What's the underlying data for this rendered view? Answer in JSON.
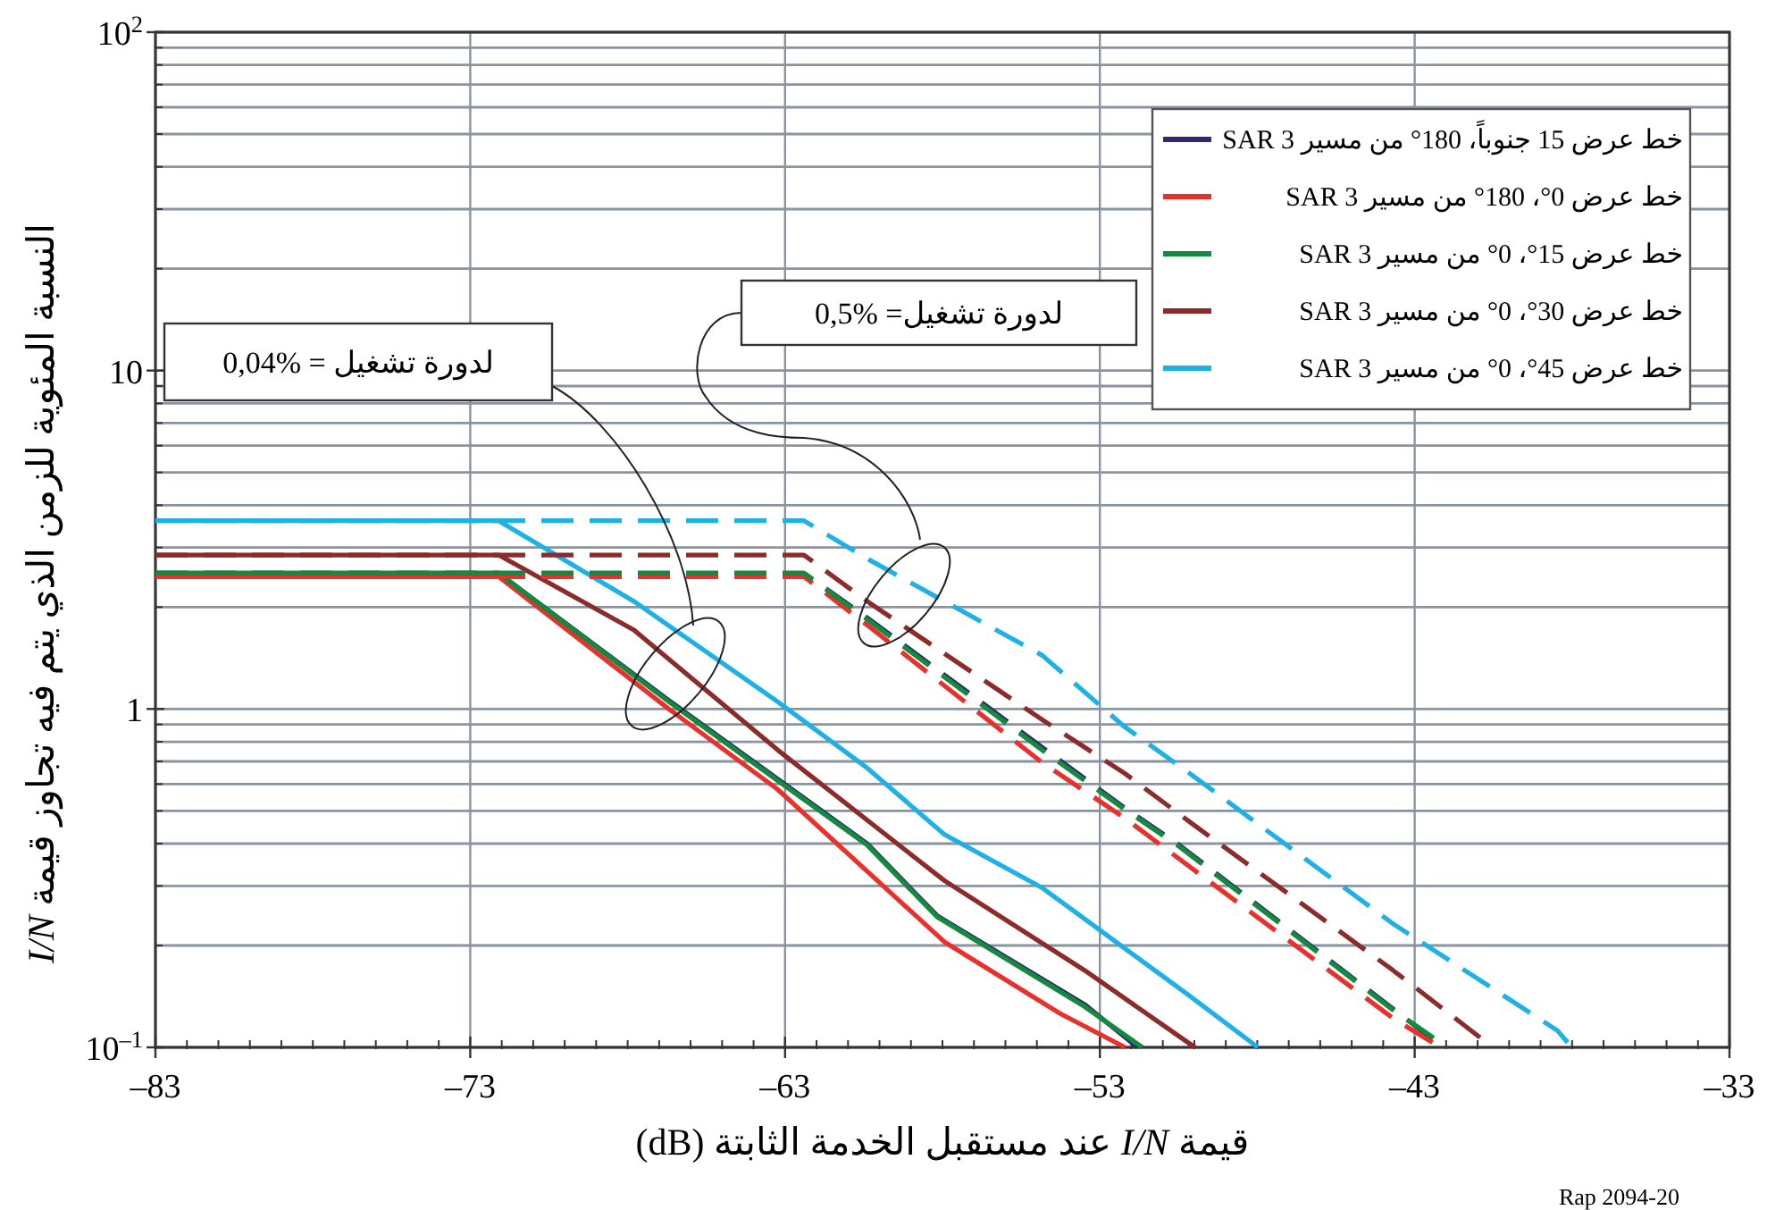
{
  "chart_data": {
    "type": "line",
    "xlabel": "قيمة *I/N* عند مستقبل الخدمة الثابتة (dB)",
    "ylabel": "النسبة المئوية للزمن الذي يتم فيه تجاوز قيمة *I/N*",
    "annotations": [
      "لدورة تشغيل = %0,04",
      "لدورة تشغيل= %0,5",
      "Rap 2094-20"
    ],
    "xlim": [
      -83,
      -33
    ],
    "ylim": [
      0.1,
      100
    ],
    "log": "y",
    "grid": true,
    "legend": "top right",
    "xticks": [
      {
        "value": -83,
        "label": "–83"
      },
      {
        "value": -73,
        "label": "–73"
      },
      {
        "value": -63,
        "label": "–63"
      },
      {
        "value": -53,
        "label": "–53"
      },
      {
        "value": -43,
        "label": "–43"
      },
      {
        "value": -33,
        "label": "–33"
      }
    ],
    "yticks": [
      {
        "value": 0.1,
        "label": "10$^{–1}$"
      },
      1,
      10,
      {
        "value": 100,
        "label": "10$^{2}$"
      }
    ],
    "series": [
      {
        "name": "خط عرض 15 جنوباً، 180° من مسير SAR 3",
        "color": "#2e2a6e",
        "line_style": "solid",
        "x": [
          -83,
          -72.1,
          -66.69,
          -63.23,
          -60.39,
          -58.17,
          -53.49,
          -51.8
        ],
        "values": [
          2.52,
          2.52,
          1.06,
          0.62,
          0.4,
          0.245,
          0.134,
          0.1
        ]
      },
      {
        "name": "خط عرض 0°، 180° من مسير SAR 3",
        "color": "#e8302c",
        "line_style": "solid",
        "x": [
          -83,
          -72.1,
          -66.69,
          -63.23,
          -57.94,
          -54.27,
          -52.2
        ],
        "values": [
          2.46,
          2.46,
          1.0,
          0.578,
          0.205,
          0.126,
          0.1
        ]
      },
      {
        "name": "خط عرض 15°، 0° من مسير SAR 3",
        "color": "#138a3e",
        "line_style": "solid",
        "x": [
          -83,
          -72.1,
          -66.69,
          -63.23,
          -60.39,
          -58.17,
          -53.49,
          -51.65
        ],
        "values": [
          2.52,
          2.52,
          1.05,
          0.614,
          0.396,
          0.243,
          0.132,
          0.1
        ]
      },
      {
        "name": "خط عرض 30°، 0° من مسير SAR 3",
        "color": "#8b2c2a",
        "line_style": "solid",
        "x": [
          -83,
          -72.1,
          -67.8,
          -63.23,
          -57.94,
          -53.49,
          -49.98
        ],
        "values": [
          2.85,
          2.85,
          1.71,
          0.756,
          0.311,
          0.169,
          0.1
        ]
      },
      {
        "name": "خط عرض 45°، 0° من مسير SAR 3",
        "color": "#1fb1e6",
        "line_style": "solid",
        "x": [
          -83,
          -72.1,
          -67.8,
          -63.23,
          -60.39,
          -57.94,
          -54.83,
          -50.15,
          -47.98
        ],
        "values": [
          3.6,
          3.6,
          2.08,
          1.05,
          0.669,
          0.426,
          0.296,
          0.142,
          0.1
        ]
      },
      {
        "color": "#2e2a6e",
        "line_style": "dashed",
        "x": [
          -83,
          -62.4,
          -60.39,
          -54.83,
          -52.21,
          -50.54,
          -43.69,
          -42.1
        ],
        "values": [
          2.52,
          2.52,
          1.86,
          0.77,
          0.51,
          0.4,
          0.13,
          0.1
        ]
      },
      {
        "color": "#e8302c",
        "line_style": "dashed",
        "x": [
          -83,
          -62.4,
          -60.39,
          -54.83,
          -52.21,
          -50.54,
          -43.69,
          -42.19
        ],
        "values": [
          2.46,
          2.46,
          1.77,
          0.694,
          0.476,
          0.364,
          0.122,
          0.1
        ]
      },
      {
        "color": "#138a3e",
        "line_style": "dashed",
        "x": [
          -83,
          -62.4,
          -60.39,
          -54.83,
          -52.21,
          -50.54,
          -43.69,
          -41.96
        ],
        "values": [
          2.52,
          2.52,
          1.84,
          0.756,
          0.505,
          0.396,
          0.129,
          0.1
        ]
      },
      {
        "color": "#8b2c2a",
        "line_style": "dashed",
        "x": [
          -83,
          -62.4,
          -60.39,
          -54.83,
          -52.21,
          -50.15,
          -43.69,
          -40.52
        ],
        "values": [
          2.85,
          2.85,
          2.08,
          0.929,
          0.645,
          0.464,
          0.169,
          0.1
        ]
      },
      {
        "color": "#1fb1e6",
        "line_style": "dashed",
        "x": [
          -83,
          -62.4,
          -60.39,
          -54.83,
          -52.21,
          -50.15,
          -43.69,
          -38.46,
          -38.01
        ],
        "values": [
          3.6,
          3.6,
          2.78,
          1.44,
          0.885,
          0.645,
          0.232,
          0.112,
          0.1
        ]
      }
    ]
  }
}
